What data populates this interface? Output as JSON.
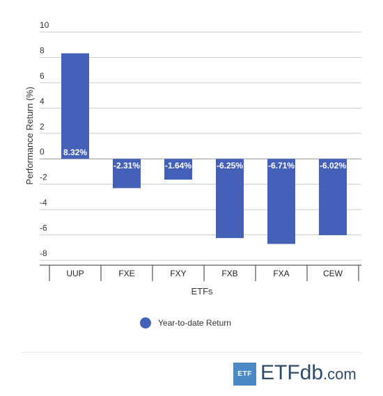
{
  "chart_data": {
    "type": "bar",
    "title": "",
    "xlabel": "ETFs",
    "ylabel": "Performance Return (%)",
    "ylim": [
      -8,
      10
    ],
    "yticks": [
      10,
      8,
      6,
      4,
      2,
      0,
      -2,
      -4,
      -6,
      -8
    ],
    "ytick_labels": [
      "10",
      "8",
      "6",
      "4",
      "2",
      "0",
      "-2",
      "-4",
      "-6",
      "-8"
    ],
    "categories": [
      "UUP",
      "FXE",
      "FXY",
      "FXB",
      "FXA",
      "CEW"
    ],
    "series": [
      {
        "name": "Year-to-date Return",
        "color": "#4561b7",
        "values": [
          8.32,
          -2.31,
          -1.64,
          -6.25,
          -6.71,
          -6.02
        ],
        "labels": [
          "8.32%",
          "-2.31%",
          "-1.64%",
          "-6.25%",
          "-6.71%",
          "-6.02%"
        ]
      }
    ],
    "grid": true,
    "legend": "bottom-center"
  },
  "branding": {
    "badge": "ETF",
    "word_main": "ETF",
    "word_db": "db",
    "word_tld": ".com"
  }
}
